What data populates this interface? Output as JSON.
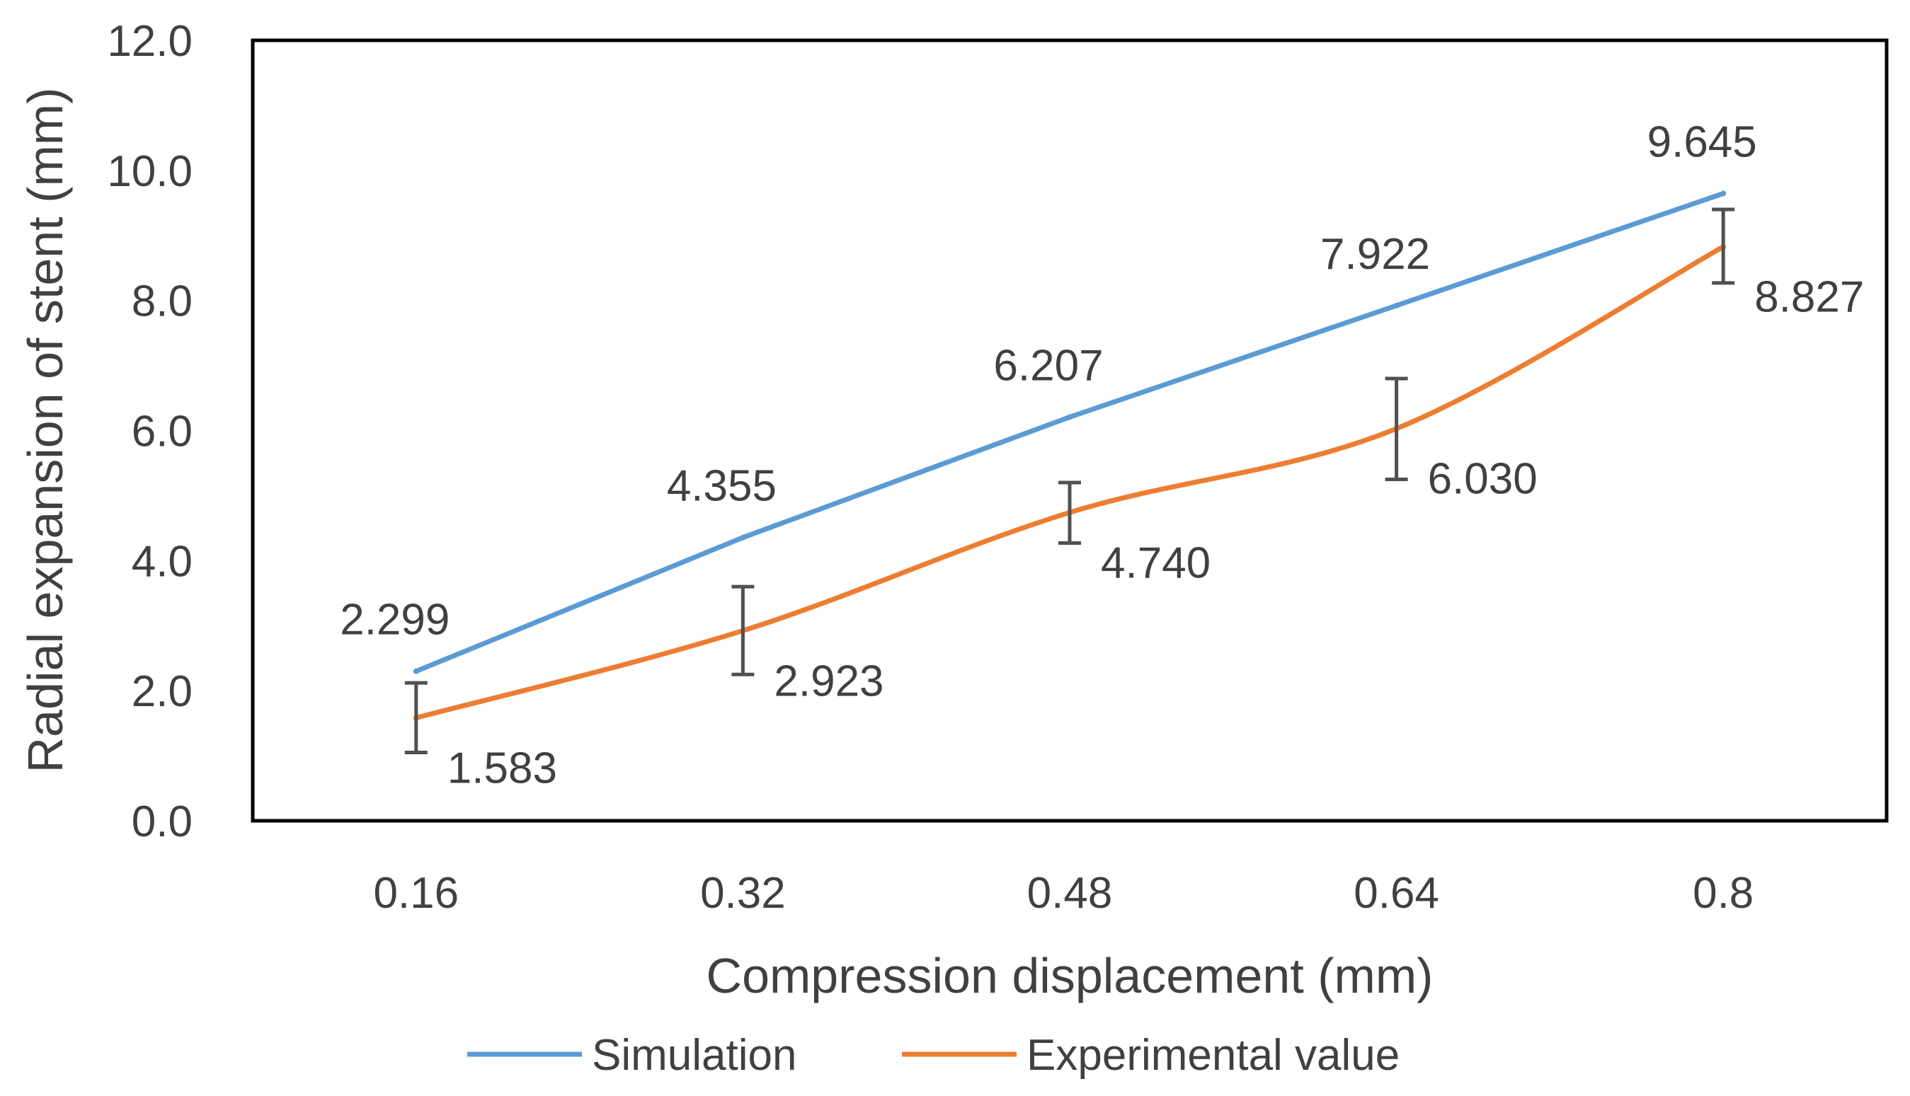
{
  "chart_data": {
    "type": "line",
    "title": "",
    "xlabel": "Compression displacement (mm)",
    "ylabel": "Radial expansion of stent (mm)",
    "categories": [
      "0.16",
      "0.32",
      "0.48",
      "0.64",
      "0.8"
    ],
    "ylim": [
      0,
      12
    ],
    "yticks": [
      "0.0",
      "2.0",
      "4.0",
      "6.0",
      "8.0",
      "10.0",
      "12.0"
    ],
    "grid": false,
    "legend_position": "bottom",
    "series": [
      {
        "name": "Simulation",
        "color": "#5B9BD5",
        "smooth": false,
        "values": [
          2.299,
          4.355,
          6.207,
          7.922,
          9.645
        ],
        "labels": [
          "2.299",
          "4.355",
          "6.207",
          "7.922",
          "9.645"
        ],
        "label_position": "above"
      },
      {
        "name": "Experimental value",
        "color": "#ED7D31",
        "smooth": true,
        "values": [
          1.583,
          2.923,
          4.74,
          6.03,
          8.827
        ],
        "labels": [
          "1.583",
          "2.923",
          "4.740",
          "6.030",
          "8.827"
        ],
        "label_position": "below-right",
        "error_bars": [
          [
            1.05,
            2.12
          ],
          [
            2.25,
            3.6
          ],
          [
            4.27,
            5.2
          ],
          [
            5.25,
            6.8
          ],
          [
            8.27,
            9.4
          ]
        ]
      }
    ]
  }
}
